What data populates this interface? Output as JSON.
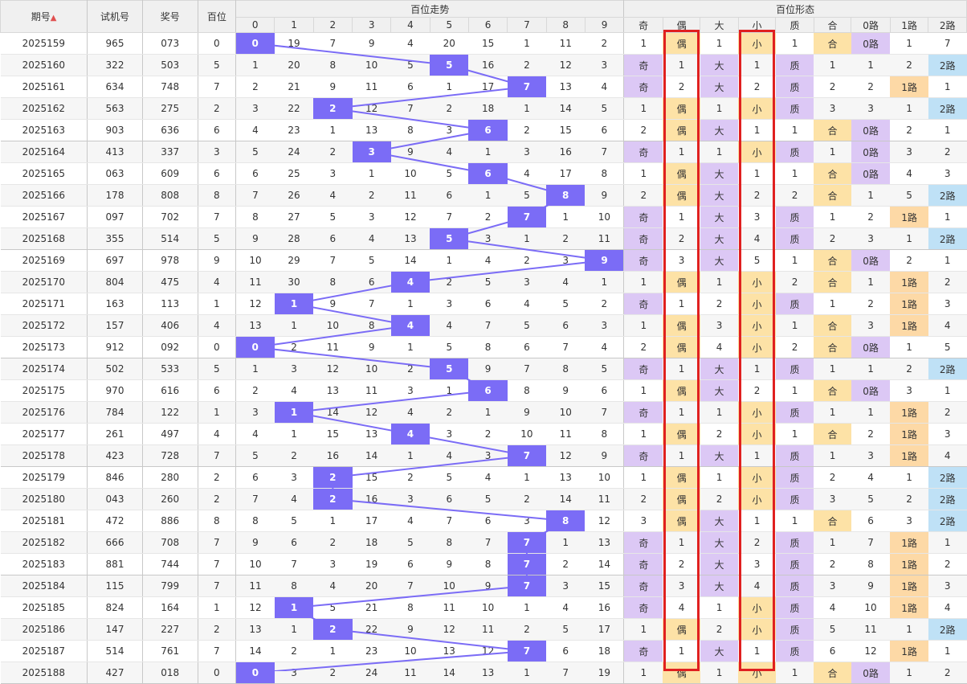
{
  "headers": {
    "period": "期号",
    "test_no": "试机号",
    "prize_no": "奖号",
    "hundreds": "百位",
    "trend_group": "百位走势",
    "form_group": "百位形态",
    "digits": [
      "0",
      "1",
      "2",
      "3",
      "4",
      "5",
      "6",
      "7",
      "8",
      "9"
    ],
    "forms": [
      "奇",
      "偶",
      "大",
      "小",
      "质",
      "合",
      "0路",
      "1路",
      "2路"
    ]
  },
  "labels": {
    "odd": "奇",
    "even": "偶",
    "big": "大",
    "small": "小",
    "prime": "质",
    "composite": "合",
    "r0": "0路",
    "r1": "1路",
    "r2": "2路"
  },
  "colors": {
    "hit_ball": "#7b6cf6",
    "trend_line": "#7b6cf6",
    "highlight_border": "#e02020",
    "purple_cell": "#dcc8f5",
    "orange_cell": "#fde2a6",
    "blue_cell": "#bfe1f6"
  },
  "highlighted_columns": [
    "偶",
    "小"
  ],
  "rows": [
    {
      "period": "2025159",
      "test": "965",
      "prize": "073",
      "h": "0",
      "digits": [
        "0",
        "19",
        "7",
        "9",
        "4",
        "20",
        "15",
        "1",
        "11",
        "2"
      ],
      "forms": [
        "1",
        "偶",
        "1",
        "小",
        "1",
        "合",
        "0路",
        "1",
        "7"
      ]
    },
    {
      "period": "2025160",
      "test": "322",
      "prize": "503",
      "h": "5",
      "digits": [
        "1",
        "20",
        "8",
        "10",
        "5",
        "5",
        "16",
        "2",
        "12",
        "3"
      ],
      "forms": [
        "奇",
        "1",
        "大",
        "1",
        "质",
        "1",
        "1",
        "2",
        "2路"
      ]
    },
    {
      "period": "2025161",
      "test": "634",
      "prize": "748",
      "h": "7",
      "digits": [
        "2",
        "21",
        "9",
        "11",
        "6",
        "1",
        "17",
        "7",
        "13",
        "4"
      ],
      "forms": [
        "奇",
        "2",
        "大",
        "2",
        "质",
        "2",
        "2",
        "1路",
        "1"
      ]
    },
    {
      "period": "2025162",
      "test": "563",
      "prize": "275",
      "h": "2",
      "digits": [
        "3",
        "22",
        "2",
        "12",
        "7",
        "2",
        "18",
        "1",
        "14",
        "5"
      ],
      "forms": [
        "1",
        "偶",
        "1",
        "小",
        "质",
        "3",
        "3",
        "1",
        "2路"
      ]
    },
    {
      "period": "2025163",
      "test": "903",
      "prize": "636",
      "h": "6",
      "digits": [
        "4",
        "23",
        "1",
        "13",
        "8",
        "3",
        "6",
        "2",
        "15",
        "6"
      ],
      "forms": [
        "2",
        "偶",
        "大",
        "1",
        "1",
        "合",
        "0路",
        "2",
        "1"
      ]
    },
    {
      "period": "2025164",
      "test": "413",
      "prize": "337",
      "h": "3",
      "digits": [
        "5",
        "24",
        "2",
        "3",
        "9",
        "4",
        "1",
        "3",
        "16",
        "7"
      ],
      "forms": [
        "奇",
        "1",
        "1",
        "小",
        "质",
        "1",
        "0路",
        "3",
        "2"
      ]
    },
    {
      "period": "2025165",
      "test": "063",
      "prize": "609",
      "h": "6",
      "digits": [
        "6",
        "25",
        "3",
        "1",
        "10",
        "5",
        "6",
        "4",
        "17",
        "8"
      ],
      "forms": [
        "1",
        "偶",
        "大",
        "1",
        "1",
        "合",
        "0路",
        "4",
        "3"
      ]
    },
    {
      "period": "2025166",
      "test": "178",
      "prize": "808",
      "h": "8",
      "digits": [
        "7",
        "26",
        "4",
        "2",
        "11",
        "6",
        "1",
        "5",
        "8",
        "9"
      ],
      "forms": [
        "2",
        "偶",
        "大",
        "2",
        "2",
        "合",
        "1",
        "5",
        "2路"
      ]
    },
    {
      "period": "2025167",
      "test": "097",
      "prize": "702",
      "h": "7",
      "digits": [
        "8",
        "27",
        "5",
        "3",
        "12",
        "7",
        "2",
        "7",
        "1",
        "10"
      ],
      "forms": [
        "奇",
        "1",
        "大",
        "3",
        "质",
        "1",
        "2",
        "1路",
        "1"
      ]
    },
    {
      "period": "2025168",
      "test": "355",
      "prize": "514",
      "h": "5",
      "digits": [
        "9",
        "28",
        "6",
        "4",
        "13",
        "5",
        "3",
        "1",
        "2",
        "11"
      ],
      "forms": [
        "奇",
        "2",
        "大",
        "4",
        "质",
        "2",
        "3",
        "1",
        "2路"
      ]
    },
    {
      "period": "2025169",
      "test": "697",
      "prize": "978",
      "h": "9",
      "digits": [
        "10",
        "29",
        "7",
        "5",
        "14",
        "1",
        "4",
        "2",
        "3",
        "9"
      ],
      "forms": [
        "奇",
        "3",
        "大",
        "5",
        "1",
        "合",
        "0路",
        "2",
        "1"
      ]
    },
    {
      "period": "2025170",
      "test": "804",
      "prize": "475",
      "h": "4",
      "digits": [
        "11",
        "30",
        "8",
        "6",
        "4",
        "2",
        "5",
        "3",
        "4",
        "1"
      ],
      "forms": [
        "1",
        "偶",
        "1",
        "小",
        "2",
        "合",
        "1",
        "1路",
        "2"
      ]
    },
    {
      "period": "2025171",
      "test": "163",
      "prize": "113",
      "h": "1",
      "digits": [
        "12",
        "1",
        "9",
        "7",
        "1",
        "3",
        "6",
        "4",
        "5",
        "2"
      ],
      "forms": [
        "奇",
        "1",
        "2",
        "小",
        "质",
        "1",
        "2",
        "1路",
        "3"
      ]
    },
    {
      "period": "2025172",
      "test": "157",
      "prize": "406",
      "h": "4",
      "digits": [
        "13",
        "1",
        "10",
        "8",
        "4",
        "4",
        "7",
        "5",
        "6",
        "3"
      ],
      "forms": [
        "1",
        "偶",
        "3",
        "小",
        "1",
        "合",
        "3",
        "1路",
        "4"
      ]
    },
    {
      "period": "2025173",
      "test": "912",
      "prize": "092",
      "h": "0",
      "digits": [
        "0",
        "2",
        "11",
        "9",
        "1",
        "5",
        "8",
        "6",
        "7",
        "4"
      ],
      "forms": [
        "2",
        "偶",
        "4",
        "小",
        "2",
        "合",
        "0路",
        "1",
        "5"
      ]
    },
    {
      "period": "2025174",
      "test": "502",
      "prize": "533",
      "h": "5",
      "digits": [
        "1",
        "3",
        "12",
        "10",
        "2",
        "5",
        "9",
        "7",
        "8",
        "5"
      ],
      "forms": [
        "奇",
        "1",
        "大",
        "1",
        "质",
        "1",
        "1",
        "2",
        "2路"
      ]
    },
    {
      "period": "2025175",
      "test": "970",
      "prize": "616",
      "h": "6",
      "digits": [
        "2",
        "4",
        "13",
        "11",
        "3",
        "1",
        "6",
        "8",
        "9",
        "6"
      ],
      "forms": [
        "1",
        "偶",
        "大",
        "2",
        "1",
        "合",
        "0路",
        "3",
        "1"
      ]
    },
    {
      "period": "2025176",
      "test": "784",
      "prize": "122",
      "h": "1",
      "digits": [
        "3",
        "1",
        "14",
        "12",
        "4",
        "2",
        "1",
        "9",
        "10",
        "7"
      ],
      "forms": [
        "奇",
        "1",
        "1",
        "小",
        "质",
        "1",
        "1",
        "1路",
        "2"
      ]
    },
    {
      "period": "2025177",
      "test": "261",
      "prize": "497",
      "h": "4",
      "digits": [
        "4",
        "1",
        "15",
        "13",
        "4",
        "3",
        "2",
        "10",
        "11",
        "8"
      ],
      "forms": [
        "1",
        "偶",
        "2",
        "小",
        "1",
        "合",
        "2",
        "1路",
        "3"
      ]
    },
    {
      "period": "2025178",
      "test": "423",
      "prize": "728",
      "h": "7",
      "digits": [
        "5",
        "2",
        "16",
        "14",
        "1",
        "4",
        "3",
        "7",
        "12",
        "9"
      ],
      "forms": [
        "奇",
        "1",
        "大",
        "1",
        "质",
        "1",
        "3",
        "1路",
        "4"
      ]
    },
    {
      "period": "2025179",
      "test": "846",
      "prize": "280",
      "h": "2",
      "digits": [
        "6",
        "3",
        "2",
        "15",
        "2",
        "5",
        "4",
        "1",
        "13",
        "10"
      ],
      "forms": [
        "1",
        "偶",
        "1",
        "小",
        "质",
        "2",
        "4",
        "1",
        "2路"
      ]
    },
    {
      "period": "2025180",
      "test": "043",
      "prize": "260",
      "h": "2",
      "digits": [
        "7",
        "4",
        "2",
        "16",
        "3",
        "6",
        "5",
        "2",
        "14",
        "11"
      ],
      "forms": [
        "2",
        "偶",
        "2",
        "小",
        "质",
        "3",
        "5",
        "2",
        "2路"
      ]
    },
    {
      "period": "2025181",
      "test": "472",
      "prize": "886",
      "h": "8",
      "digits": [
        "8",
        "5",
        "1",
        "17",
        "4",
        "7",
        "6",
        "3",
        "8",
        "12"
      ],
      "forms": [
        "3",
        "偶",
        "大",
        "1",
        "1",
        "合",
        "6",
        "3",
        "2路"
      ]
    },
    {
      "period": "2025182",
      "test": "666",
      "prize": "708",
      "h": "7",
      "digits": [
        "9",
        "6",
        "2",
        "18",
        "5",
        "8",
        "7",
        "7",
        "1",
        "13"
      ],
      "forms": [
        "奇",
        "1",
        "大",
        "2",
        "质",
        "1",
        "7",
        "1路",
        "1"
      ]
    },
    {
      "period": "2025183",
      "test": "881",
      "prize": "744",
      "h": "7",
      "digits": [
        "10",
        "7",
        "3",
        "19",
        "6",
        "9",
        "8",
        "7",
        "2",
        "14"
      ],
      "forms": [
        "奇",
        "2",
        "大",
        "3",
        "质",
        "2",
        "8",
        "1路",
        "2"
      ]
    },
    {
      "period": "2025184",
      "test": "115",
      "prize": "799",
      "h": "7",
      "digits": [
        "11",
        "8",
        "4",
        "20",
        "7",
        "10",
        "9",
        "7",
        "3",
        "15"
      ],
      "forms": [
        "奇",
        "3",
        "大",
        "4",
        "质",
        "3",
        "9",
        "1路",
        "3"
      ]
    },
    {
      "period": "2025185",
      "test": "824",
      "prize": "164",
      "h": "1",
      "digits": [
        "12",
        "1",
        "5",
        "21",
        "8",
        "11",
        "10",
        "1",
        "4",
        "16"
      ],
      "forms": [
        "奇",
        "4",
        "1",
        "小",
        "质",
        "4",
        "10",
        "1路",
        "4"
      ]
    },
    {
      "period": "2025186",
      "test": "147",
      "prize": "227",
      "h": "2",
      "digits": [
        "13",
        "1",
        "2",
        "22",
        "9",
        "12",
        "11",
        "2",
        "5",
        "17"
      ],
      "forms": [
        "1",
        "偶",
        "2",
        "小",
        "质",
        "5",
        "11",
        "1",
        "2路"
      ]
    },
    {
      "period": "2025187",
      "test": "514",
      "prize": "761",
      "h": "7",
      "digits": [
        "14",
        "2",
        "1",
        "23",
        "10",
        "13",
        "12",
        "7",
        "6",
        "18"
      ],
      "forms": [
        "奇",
        "1",
        "大",
        "1",
        "质",
        "6",
        "12",
        "1路",
        "1"
      ]
    },
    {
      "period": "2025188",
      "test": "427",
      "prize": "018",
      "h": "0",
      "digits": [
        "0",
        "3",
        "2",
        "24",
        "11",
        "14",
        "13",
        "1",
        "7",
        "19"
      ],
      "forms": [
        "1",
        "偶",
        "1",
        "小",
        "1",
        "合",
        "0路",
        "1",
        "2"
      ]
    }
  ]
}
